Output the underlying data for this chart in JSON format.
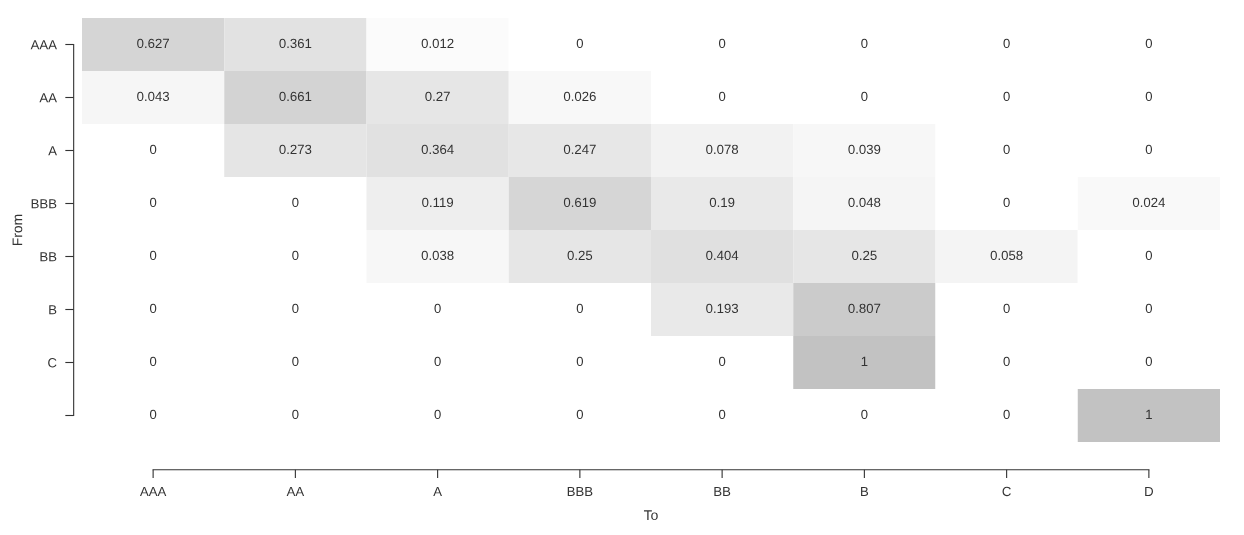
{
  "chart_data": {
    "type": "heatmap",
    "xlabel": "To",
    "ylabel": "From",
    "categories": [
      "AAA",
      "AA",
      "A",
      "BBB",
      "BB",
      "B",
      "C",
      "D"
    ],
    "y_categories": [
      "AAA",
      "AA",
      "A",
      "BBB",
      "BB",
      "B",
      "C",
      null
    ],
    "cells": [
      [
        0.627,
        0.361,
        0.012,
        0,
        0,
        0,
        0,
        0
      ],
      [
        0.043,
        0.661,
        0.27,
        0.026,
        0,
        0,
        0,
        0
      ],
      [
        0,
        0.273,
        0.364,
        0.247,
        0.078,
        0.039,
        0,
        0
      ],
      [
        0,
        0,
        0.119,
        0.619,
        0.19,
        0.048,
        0,
        0.024
      ],
      [
        0,
        0,
        0.038,
        0.25,
        0.404,
        0.25,
        0.058,
        0
      ],
      [
        0,
        0,
        0,
        0,
        0.193,
        0.807,
        0,
        0
      ],
      [
        0,
        0,
        0,
        0,
        0,
        1,
        0,
        0
      ],
      [
        0,
        0,
        0,
        0,
        0,
        0,
        0,
        1
      ]
    ],
    "data_labels": true,
    "grid": false,
    "legend": false
  }
}
